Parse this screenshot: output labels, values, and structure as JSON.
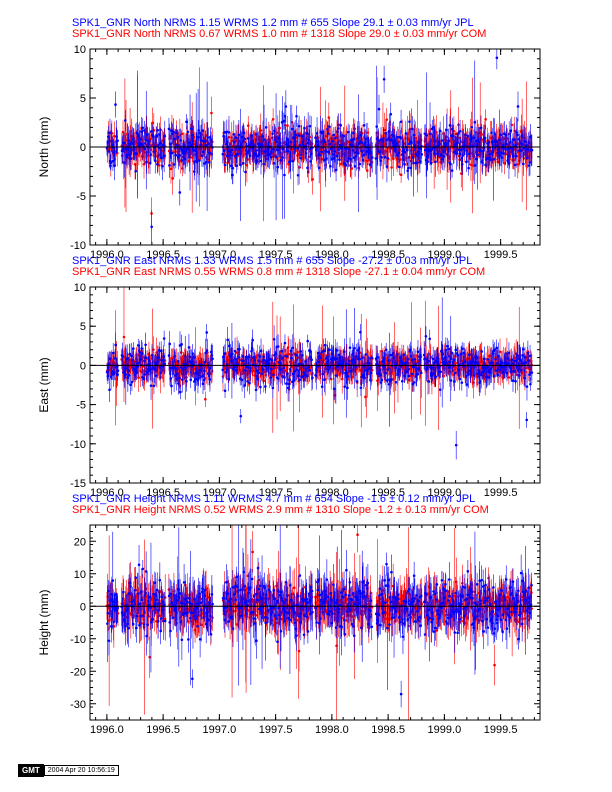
{
  "chart_data": [
    {
      "type": "scatter",
      "ylabel": "North (mm)",
      "xlim": [
        1995.85,
        1999.85
      ],
      "ylim": [
        -10,
        10
      ],
      "x_ticks": [
        "1996.0",
        "1996.5",
        "1997.0",
        "1997.5",
        "1998.0",
        "1998.5",
        "1999.0",
        "1999.5"
      ],
      "x_tick_values": [
        1996.0,
        1996.5,
        1997.0,
        1997.5,
        1998.0,
        1998.5,
        1999.0,
        1999.5
      ],
      "y_ticks": [
        "-10",
        "-5",
        "0",
        "5",
        "10"
      ],
      "y_tick_values": [
        -10,
        -5,
        0,
        5,
        10
      ],
      "series": [
        {
          "name": "SPK1_GNR North NRMS 1.15 WRMS  1.2 mm # 655 Slope   29.1 ±  0.03 mm/yr JPL",
          "color": "#0000ff",
          "count": 655,
          "nrms": 1.15,
          "wrms_mm": 1.2,
          "slope_mm_yr": 29.1,
          "slope_sigma": 0.03,
          "typical_sigma_mm": 1.2
        },
        {
          "name": "SPK1_GNR North NRMS 0.67 WRMS  1.0 mm # 1318 Slope   29.0 ±  0.03 mm/yr COM",
          "color": "#ff0000",
          "count": 1318,
          "nrms": 0.67,
          "wrms_mm": 1.0,
          "slope_mm_yr": 29.0,
          "slope_sigma": 0.03,
          "typical_sigma_mm": 1.3
        }
      ]
    },
    {
      "type": "scatter",
      "ylabel": "East (mm)",
      "xlim": [
        1995.85,
        1999.85
      ],
      "ylim": [
        -15,
        10
      ],
      "x_ticks": [
        "1996.0",
        "1996.5",
        "1997.0",
        "1997.5",
        "1998.0",
        "1998.5",
        "1999.0",
        "1999.5"
      ],
      "x_tick_values": [
        1996.0,
        1996.5,
        1997.0,
        1997.5,
        1998.0,
        1998.5,
        1999.0,
        1999.5
      ],
      "y_ticks": [
        "-15",
        "-10",
        "-5",
        "0",
        "5",
        "10"
      ],
      "y_tick_values": [
        -15,
        -10,
        -5,
        0,
        5,
        10
      ],
      "series": [
        {
          "name": "SPK1_GNR East NRMS 1.33 WRMS  1.5 mm # 655 Slope  -27.2 ±  0.03 mm/yr JPL",
          "color": "#0000ff",
          "count": 655,
          "nrms": 1.33,
          "wrms_mm": 1.5,
          "slope_mm_yr": -27.2,
          "slope_sigma": 0.03,
          "typical_sigma_mm": 1.3
        },
        {
          "name": "SPK1_GNR East NRMS 0.55 WRMS  0.8 mm # 1318 Slope  -27.1 ±  0.04 mm/yr COM",
          "color": "#ff0000",
          "count": 1318,
          "nrms": 0.55,
          "wrms_mm": 0.8,
          "slope_mm_yr": -27.1,
          "slope_sigma": 0.04,
          "typical_sigma_mm": 1.5
        }
      ]
    },
    {
      "type": "scatter",
      "ylabel": "Height (mm)",
      "xlim": [
        1995.85,
        1999.85
      ],
      "ylim": [
        -35,
        25
      ],
      "x_ticks": [
        "1996.0",
        "1996.5",
        "1997.0",
        "1997.5",
        "1998.0",
        "1998.5",
        "1999.0",
        "1999.5"
      ],
      "x_tick_values": [
        1996.0,
        1996.5,
        1997.0,
        1997.5,
        1998.0,
        1998.5,
        1999.0,
        1999.5
      ],
      "y_ticks": [
        "-30",
        "-20",
        "-10",
        "0",
        "10",
        "20"
      ],
      "y_tick_values": [
        -30,
        -20,
        -10,
        0,
        10,
        20
      ],
      "series": [
        {
          "name": "SPK1_GNR Height NRMS 1.11 WRMS  4.7 mm # 654 Slope   -1.6 ±  0.12 mm/yr JPL",
          "color": "#0000ff",
          "count": 654,
          "nrms": 1.11,
          "wrms_mm": 4.7,
          "slope_mm_yr": -1.6,
          "slope_sigma": 0.12,
          "typical_sigma_mm": 4.5
        },
        {
          "name": "SPK1_GNR Height NRMS 0.52 WRMS  2.9 mm # 1310 Slope   -1.2 ±  0.13 mm/yr COM",
          "color": "#ff0000",
          "count": 1310,
          "nrms": 0.52,
          "wrms_mm": 2.9,
          "slope_mm_yr": -1.2,
          "slope_sigma": 0.13,
          "typical_sigma_mm": 5.5
        }
      ]
    }
  ],
  "gmt_stamp": {
    "logo": "GMT",
    "timestamp": "2004 Apr 20 10:56:19"
  }
}
